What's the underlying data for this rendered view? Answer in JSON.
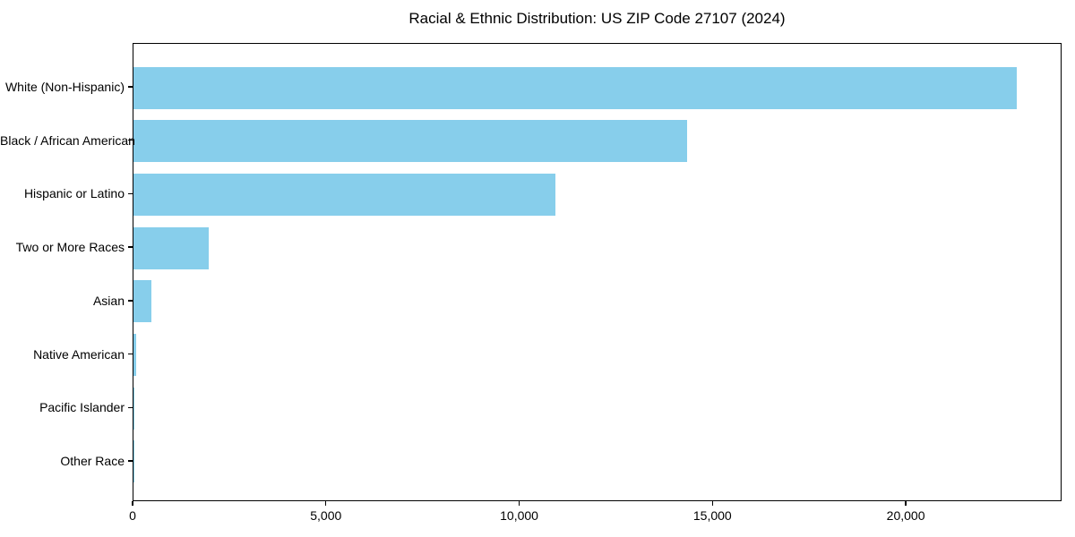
{
  "chart_data": {
    "type": "bar",
    "orientation": "horizontal",
    "title": "Racial & Ethnic Distribution: US ZIP Code 27107 (2024)",
    "categories": [
      "White (Non-Hispanic)",
      "Black / African American",
      "Hispanic or Latino",
      "Two or More Races",
      "Asian",
      "Native American",
      "Pacific Islander",
      "Other Race"
    ],
    "values": [
      22900,
      14350,
      10930,
      1940,
      470,
      65,
      25,
      15
    ],
    "xlabel": "",
    "ylabel": "",
    "xlim": [
      0,
      24030
    ],
    "xticks": [
      0,
      5000,
      10000,
      15000,
      20000
    ],
    "xticklabels": [
      "0",
      "5,000",
      "10,000",
      "15,000",
      "20,000"
    ],
    "bar_color": "#87CEEB",
    "axis_color": "#000000",
    "background_color": "#ffffff",
    "grid": false,
    "legend": "none",
    "categories_order": "largest value at top, y-axis inverted"
  }
}
